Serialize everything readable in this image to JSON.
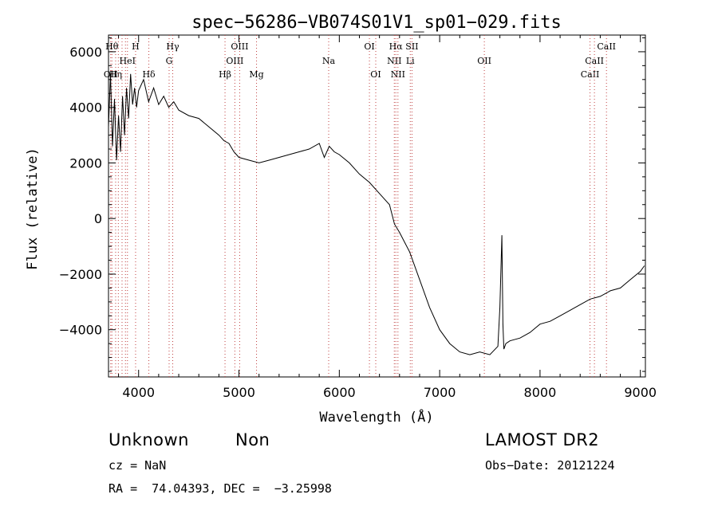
{
  "chart_data": {
    "type": "line",
    "title": "spec−56286−VB074S01V1_sp01−029.fits",
    "xlabel": "Wavelength (Å)",
    "ylabel": "Flux (relative)",
    "xlim": [
      3700,
      9050
    ],
    "ylim": [
      -5700,
      6600
    ],
    "xticks": [
      4000,
      5000,
      6000,
      7000,
      8000,
      9000
    ],
    "xtick_labels": [
      "4000",
      "5000",
      "6000",
      "7000",
      "8000",
      "9000"
    ],
    "yticks": [
      -4000,
      -2000,
      0,
      2000,
      4000,
      6000
    ],
    "ytick_labels": [
      "−4000",
      "−2000",
      "0",
      "2000",
      "4000",
      "6000"
    ],
    "grid": false,
    "series": [
      {
        "x": [
          3700,
          3720,
          3740,
          3760,
          3780,
          3800,
          3820,
          3840,
          3860,
          3880,
          3900,
          3920,
          3940,
          3960,
          3980,
          4000,
          4050,
          4100,
          4150,
          4200,
          4250,
          4300,
          4350,
          4400,
          4500,
          4600,
          4700,
          4800,
          4850,
          4900,
          4950,
          5000,
          5100,
          5200,
          5300,
          5400,
          5500,
          5600,
          5700,
          5800,
          5850,
          5900,
          5950,
          6000,
          6100,
          6200,
          6300,
          6400,
          6500,
          6550,
          6600,
          6700,
          6800,
          6900,
          7000,
          7100,
          7200,
          7300,
          7400,
          7500,
          7580,
          7600,
          7620,
          7630,
          7640,
          7660,
          7700,
          7800,
          7900,
          8000,
          8100,
          8200,
          8300,
          8400,
          8500,
          8600,
          8700,
          8800,
          8900,
          9000,
          9040
        ],
        "y": [
          3300,
          5200,
          2600,
          4300,
          2100,
          3700,
          2400,
          4400,
          3000,
          4700,
          3600,
          5200,
          4100,
          4700,
          4000,
          4600,
          5000,
          4200,
          4700,
          4100,
          4400,
          4000,
          4200,
          3900,
          3700,
          3600,
          3300,
          3000,
          2800,
          2700,
          2400,
          2200,
          2100,
          2000,
          2100,
          2200,
          2300,
          2400,
          2500,
          2700,
          2200,
          2600,
          2400,
          2300,
          2000,
          1600,
          1300,
          900,
          500,
          -200,
          -500,
          -1200,
          -2200,
          -3200,
          -4000,
          -4500,
          -4800,
          -4900,
          -4800,
          -4900,
          -4600,
          -3200,
          -600,
          -3800,
          -4700,
          -4500,
          -4400,
          -4300,
          -4100,
          -3800,
          -3700,
          -3500,
          -3300,
          -3100,
          -2900,
          -2800,
          -2600,
          -2500,
          -2200,
          -1900,
          -1700
        ]
      }
    ],
    "lines": [
      {
        "x": 3722,
        "label": "OII",
        "row": 2
      },
      {
        "x": 3734,
        "label": "Hθ",
        "row": 0
      },
      {
        "x": 3771,
        "label": "Hη",
        "row": 2
      },
      {
        "x": 3798,
        "label": "",
        "row": -1
      },
      {
        "x": 3835,
        "label": "",
        "row": -1
      },
      {
        "x": 3869,
        "label": "",
        "row": -1
      },
      {
        "x": 3889,
        "label": "HeI",
        "row": 1
      },
      {
        "x": 3970,
        "label": "H",
        "row": 0
      },
      {
        "x": 4102,
        "label": "Hδ",
        "row": 2
      },
      {
        "x": 4304,
        "label": "G",
        "row": 1
      },
      {
        "x": 4340,
        "label": "Hγ",
        "row": 0
      },
      {
        "x": 4861,
        "label": "Hβ",
        "row": 2
      },
      {
        "x": 4959,
        "label": "OIII",
        "row": 1
      },
      {
        "x": 5007,
        "label": "OIII",
        "row": 0
      },
      {
        "x": 5175,
        "label": "Mg",
        "row": 2
      },
      {
        "x": 5894,
        "label": "Na",
        "row": 1
      },
      {
        "x": 6300,
        "label": "OI",
        "row": 0
      },
      {
        "x": 6363,
        "label": "OI",
        "row": 2
      },
      {
        "x": 6548,
        "label": "NII",
        "row": 1
      },
      {
        "x": 6563,
        "label": "Hα",
        "row": 0
      },
      {
        "x": 6584,
        "label": "NII",
        "row": 2
      },
      {
        "x": 6707,
        "label": "Li",
        "row": 1
      },
      {
        "x": 6724,
        "label": "SII",
        "row": 0
      },
      {
        "x": 7445,
        "label": "OII",
        "row": 1
      },
      {
        "x": 8498,
        "label": "CaII",
        "row": 2
      },
      {
        "x": 8542,
        "label": "CaII",
        "row": 1
      },
      {
        "x": 8662,
        "label": "CaII",
        "row": 0
      }
    ]
  },
  "info": {
    "type_label": "Unknown",
    "subclass": "Non",
    "survey": "LAMOST DR2",
    "cz": "cz = NaN",
    "obs_date": "Obs−Date: 20121224",
    "coords": "RA =  74.04393, DEC =  −3.25998"
  }
}
